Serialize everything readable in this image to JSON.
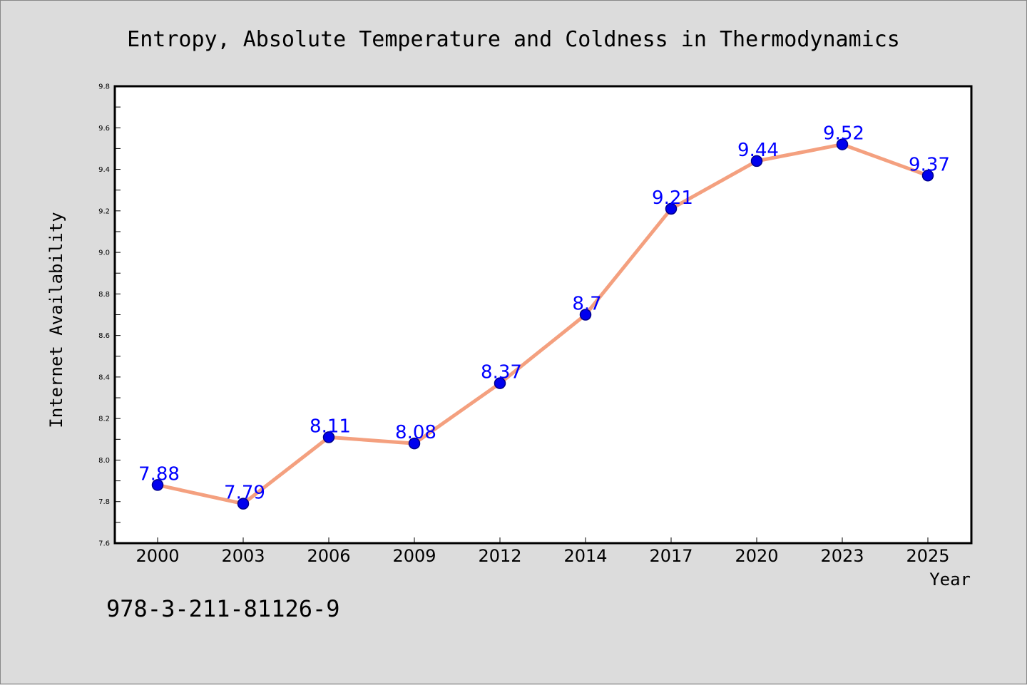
{
  "chart_data": {
    "type": "line",
    "title": "Entropy, Absolute Temperature and Coldness in Thermodynamics",
    "xlabel": "Year",
    "ylabel": "Internet Availability",
    "categories": [
      "2000",
      "2003",
      "2006",
      "2009",
      "2012",
      "2014",
      "2017",
      "2020",
      "2023",
      "2025"
    ],
    "values": [
      7.88,
      7.79,
      8.11,
      8.08,
      8.37,
      8.7,
      9.21,
      9.44,
      9.52,
      9.37
    ],
    "data_labels": [
      "7.88",
      "7.79",
      "8.11",
      "8.08",
      "8.37",
      "8.7",
      "9.21",
      "9.44",
      "9.52",
      "9.37"
    ],
    "ylim": [
      7.6,
      9.8
    ],
    "yticks": [
      "7.6",
      "7.8",
      "8.0",
      "8.2",
      "8.4",
      "8.6",
      "8.8",
      "9.0",
      "9.2",
      "9.4",
      "9.6",
      "9.8"
    ],
    "grid": false,
    "legend": "none",
    "colors": {
      "line": "#f4a07f",
      "marker_fill": "#0000ee",
      "marker_edge": "#00008b",
      "data_label": "#0000ff",
      "plot_background": "#ffffff",
      "figure_background": "#dcdcdc"
    }
  },
  "footer": {
    "isbn": "978-3-211-81126-9"
  }
}
